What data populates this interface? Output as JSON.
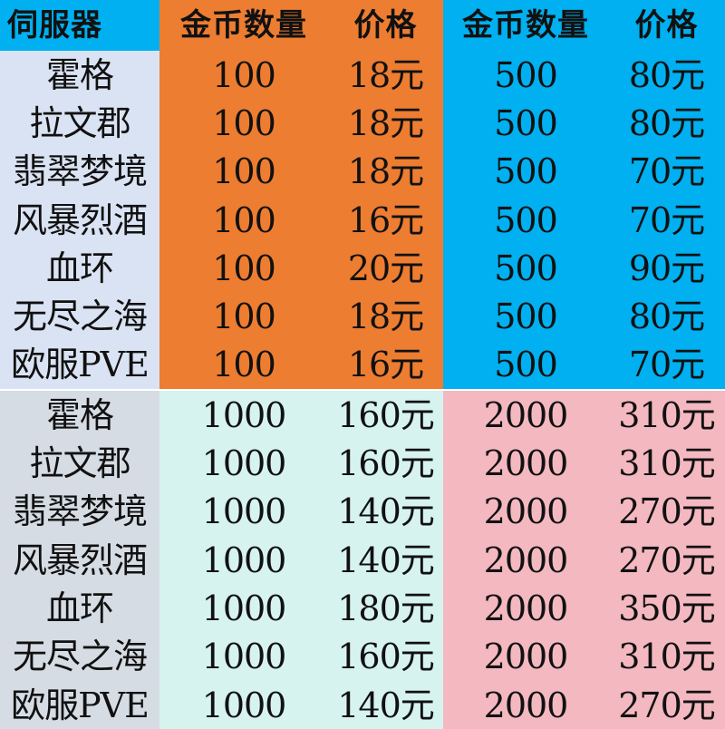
{
  "colors": {
    "header_server_bg": "#00b0f0",
    "header_left_bg": "#ed7d31",
    "header_right_bg": "#00b0f0",
    "top_server_bg": "#dae3f3",
    "top_left_bg": "#ed7d31",
    "top_right_bg": "#00b0f0",
    "bottom_server_bg": "#d6dce4",
    "bottom_left_bg": "#d6f3f0",
    "bottom_right_bg": "#f4b8c1"
  },
  "header": {
    "server": "伺服器",
    "gold_amount_1": "金币数量",
    "price_1": "价格",
    "gold_amount_2": "金币数量",
    "price_2": "价格"
  },
  "top_rows": [
    {
      "server": "霍格",
      "amount_a": "100",
      "price_a": "18元",
      "amount_b": "500",
      "price_b": "80元"
    },
    {
      "server": "拉文郡",
      "amount_a": "100",
      "price_a": "18元",
      "amount_b": "500",
      "price_b": "80元"
    },
    {
      "server": "翡翠梦境",
      "amount_a": "100",
      "price_a": "18元",
      "amount_b": "500",
      "price_b": "70元"
    },
    {
      "server": "风暴烈酒",
      "amount_a": "100",
      "price_a": "16元",
      "amount_b": "500",
      "price_b": "70元"
    },
    {
      "server": "血环",
      "amount_a": "100",
      "price_a": "20元",
      "amount_b": "500",
      "price_b": "90元"
    },
    {
      "server": "无尽之海",
      "amount_a": "100",
      "price_a": "18元",
      "amount_b": "500",
      "price_b": "80元"
    },
    {
      "server": "欧服PVE",
      "amount_a": "100",
      "price_a": "16元",
      "amount_b": "500",
      "price_b": "70元"
    }
  ],
  "bottom_rows": [
    {
      "server": "霍格",
      "amount_a": "1000",
      "price_a": "160元",
      "amount_b": "2000",
      "price_b": "310元"
    },
    {
      "server": "拉文郡",
      "amount_a": "1000",
      "price_a": "160元",
      "amount_b": "2000",
      "price_b": "310元"
    },
    {
      "server": "翡翠梦境",
      "amount_a": "1000",
      "price_a": "140元",
      "amount_b": "2000",
      "price_b": "270元"
    },
    {
      "server": "风暴烈酒",
      "amount_a": "1000",
      "price_a": "140元",
      "amount_b": "2000",
      "price_b": "270元"
    },
    {
      "server": "血环",
      "amount_a": "1000",
      "price_a": "180元",
      "amount_b": "2000",
      "price_b": "350元"
    },
    {
      "server": "无尽之海",
      "amount_a": "1000",
      "price_a": "160元",
      "amount_b": "2000",
      "price_b": "310元"
    },
    {
      "server": "欧服PVE",
      "amount_a": "1000",
      "price_a": "140元",
      "amount_b": "2000",
      "price_b": "270元"
    }
  ]
}
